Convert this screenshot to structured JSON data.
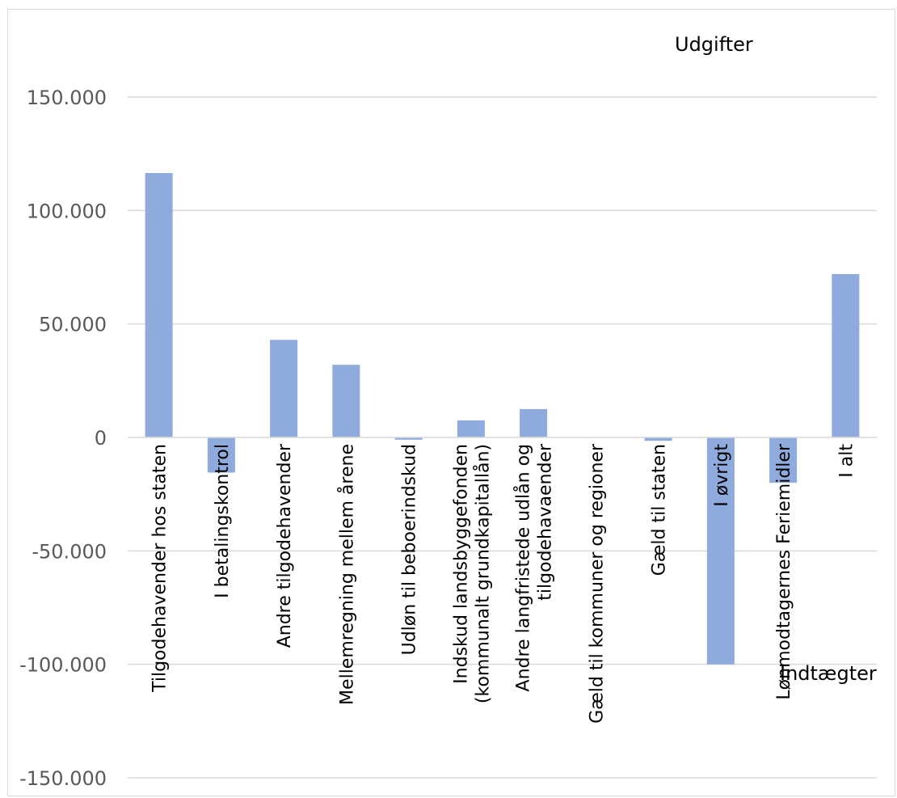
{
  "chart_data": {
    "type": "bar",
    "categories": [
      [
        "Tilgodehavender hos staten"
      ],
      [
        "I betalingskontrol"
      ],
      [
        "Andre tilgodehavender"
      ],
      [
        "Mellemregning mellem årene"
      ],
      [
        "Udløn til beboerindskud"
      ],
      [
        "Indskud landsbyggefonden",
        "(kommunalt grundkapitallån)"
      ],
      [
        "Andre langfristede udlån og",
        "tilgodehavaender"
      ],
      [
        "Gæld til kommuner og regioner"
      ],
      [
        "Gæld til staten"
      ],
      [
        "I øvrigt"
      ],
      [
        "Lønmodtagernes Feriemidler"
      ],
      [
        "I alt"
      ]
    ],
    "values": [
      116500,
      -15500,
      43000,
      32000,
      -1000,
      7500,
      12500,
      0,
      -1500,
      -100000,
      -20000,
      72000
    ],
    "ylim": [
      -150000,
      150000
    ],
    "yticks": [
      150000,
      100000,
      50000,
      0,
      -50000,
      -100000,
      -150000
    ],
    "ytick_labels": [
      "150.000",
      "100.000",
      "50.000",
      "0",
      "-50.000",
      "-100.000",
      "-150.000"
    ],
    "annotations": {
      "top": "Udgifter",
      "bottom": "Indtægter"
    },
    "bar_color": "#8faadc",
    "grid_color": "#d9d9d9",
    "grid": true,
    "legend": "none"
  }
}
